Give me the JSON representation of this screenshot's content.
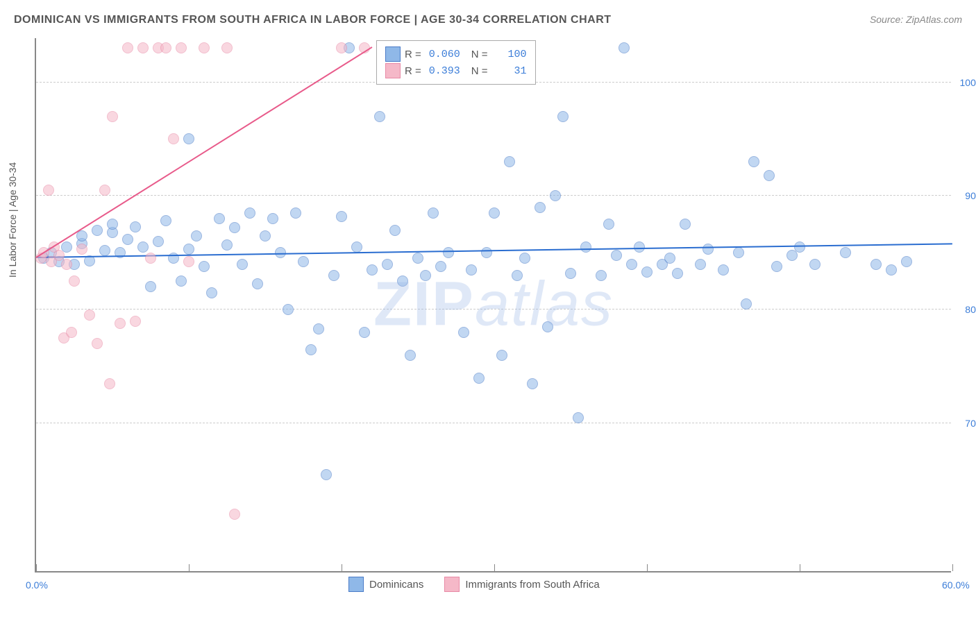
{
  "title": "DOMINICAN VS IMMIGRANTS FROM SOUTH AFRICA IN LABOR FORCE | AGE 30-34 CORRELATION CHART",
  "source": "Source: ZipAtlas.com",
  "ylabel": "In Labor Force | Age 30-34",
  "watermark": "ZIPatlas",
  "chart": {
    "type": "scatter",
    "xlim": [
      0,
      60
    ],
    "ylim": [
      57,
      104
    ],
    "yticks": [
      70,
      80,
      90,
      100
    ],
    "ytick_labels": [
      "70.0%",
      "80.0%",
      "90.0%",
      "100.0%"
    ],
    "xticks": [
      0,
      10,
      20,
      30,
      40,
      50,
      60
    ],
    "xtick_labels": [
      "0.0%",
      "",
      "",
      "",
      "",
      "",
      "60.0%"
    ],
    "grid_color": "#cccccc",
    "marker_size": 16,
    "series": [
      {
        "name": "Dominicans",
        "color": "#8fb8e8",
        "stroke": "#4a7bc8",
        "R": "0.060",
        "N": "100",
        "trend": {
          "x1": 0,
          "y1": 84.5,
          "x2": 60,
          "y2": 85.7,
          "color": "#2a6dd0",
          "width": 2
        },
        "points": [
          [
            0.5,
            84.5
          ],
          [
            1,
            85
          ],
          [
            1.5,
            84.2
          ],
          [
            2,
            85.5
          ],
          [
            2.5,
            84
          ],
          [
            3,
            85.8
          ],
          [
            3,
            86.5
          ],
          [
            3.5,
            84.3
          ],
          [
            4,
            87
          ],
          [
            4.5,
            85.2
          ],
          [
            5,
            86.8
          ],
          [
            5,
            87.5
          ],
          [
            5.5,
            85
          ],
          [
            6,
            86.2
          ],
          [
            6.5,
            87.3
          ],
          [
            7,
            85.5
          ],
          [
            7.5,
            82
          ],
          [
            8,
            86
          ],
          [
            8.5,
            87.8
          ],
          [
            9,
            84.5
          ],
          [
            9.5,
            82.5
          ],
          [
            10,
            85.3
          ],
          [
            10,
            95
          ],
          [
            10.5,
            86.5
          ],
          [
            11,
            83.8
          ],
          [
            11.5,
            81.5
          ],
          [
            12,
            88
          ],
          [
            12.5,
            85.7
          ],
          [
            13,
            87.2
          ],
          [
            13.5,
            84
          ],
          [
            14,
            88.5
          ],
          [
            14.5,
            82.3
          ],
          [
            15,
            86.5
          ],
          [
            15.5,
            88
          ],
          [
            16,
            85
          ],
          [
            16.5,
            80
          ],
          [
            17,
            88.5
          ],
          [
            17.5,
            84.2
          ],
          [
            18,
            76.5
          ],
          [
            18.5,
            78.3
          ],
          [
            19,
            65.5
          ],
          [
            19.5,
            83
          ],
          [
            20,
            88.2
          ],
          [
            20.5,
            103
          ],
          [
            21,
            85.5
          ],
          [
            21.5,
            78
          ],
          [
            22,
            83.5
          ],
          [
            22.5,
            97
          ],
          [
            23,
            84
          ],
          [
            23.5,
            87
          ],
          [
            24,
            82.5
          ],
          [
            24.5,
            76
          ],
          [
            25,
            84.5
          ],
          [
            25.5,
            83
          ],
          [
            26,
            88.5
          ],
          [
            26.5,
            83.8
          ],
          [
            27,
            85
          ],
          [
            28,
            78
          ],
          [
            28.5,
            83.5
          ],
          [
            29,
            74
          ],
          [
            29.5,
            85
          ],
          [
            30,
            88.5
          ],
          [
            30.5,
            76
          ],
          [
            31,
            93
          ],
          [
            31.5,
            83
          ],
          [
            32,
            84.5
          ],
          [
            32.5,
            73.5
          ],
          [
            33,
            89
          ],
          [
            33.5,
            78.5
          ],
          [
            34,
            90
          ],
          [
            34.5,
            97
          ],
          [
            35,
            83.2
          ],
          [
            35.5,
            70.5
          ],
          [
            36,
            85.5
          ],
          [
            37,
            83
          ],
          [
            37.5,
            87.5
          ],
          [
            38,
            84.8
          ],
          [
            38.5,
            103
          ],
          [
            39,
            84
          ],
          [
            39.5,
            85.5
          ],
          [
            40,
            83.3
          ],
          [
            41,
            84
          ],
          [
            41.5,
            84.5
          ],
          [
            42,
            83.2
          ],
          [
            42.5,
            87.5
          ],
          [
            43.5,
            84
          ],
          [
            44,
            85.3
          ],
          [
            45,
            83.5
          ],
          [
            46,
            85
          ],
          [
            46.5,
            80.5
          ],
          [
            47,
            93
          ],
          [
            48,
            91.8
          ],
          [
            48.5,
            83.8
          ],
          [
            49.5,
            84.8
          ],
          [
            50,
            85.5
          ],
          [
            51,
            84
          ],
          [
            53,
            85
          ],
          [
            55,
            84
          ],
          [
            56,
            83.5
          ],
          [
            57,
            84.2
          ]
        ]
      },
      {
        "name": "Immigrants from South Africa",
        "color": "#f5b8c8",
        "stroke": "#e889a5",
        "R": "0.393",
        "N": "31",
        "trend": {
          "x1": 0,
          "y1": 84.5,
          "x2": 22,
          "y2": 103,
          "color": "#e85a8a",
          "width": 2
        },
        "points": [
          [
            0.3,
            84.5
          ],
          [
            0.5,
            85
          ],
          [
            0.8,
            90.5
          ],
          [
            1,
            84.2
          ],
          [
            1.2,
            85.5
          ],
          [
            1.5,
            84.8
          ],
          [
            1.8,
            77.5
          ],
          [
            2,
            84
          ],
          [
            2.3,
            78
          ],
          [
            2.5,
            82.5
          ],
          [
            3,
            85.3
          ],
          [
            3.5,
            79.5
          ],
          [
            4,
            77
          ],
          [
            4.5,
            90.5
          ],
          [
            4.8,
            73.5
          ],
          [
            5,
            97
          ],
          [
            5.5,
            78.8
          ],
          [
            6,
            103
          ],
          [
            6.5,
            79
          ],
          [
            7,
            103
          ],
          [
            7.5,
            84.5
          ],
          [
            8,
            103
          ],
          [
            8.5,
            103
          ],
          [
            9,
            95
          ],
          [
            9.5,
            103
          ],
          [
            10,
            84.2
          ],
          [
            11,
            103
          ],
          [
            12.5,
            103
          ],
          [
            13,
            62
          ],
          [
            20,
            103
          ],
          [
            21.5,
            103
          ]
        ]
      }
    ]
  },
  "legend_top": {
    "r_label": "R =",
    "n_label": "N ="
  },
  "legend_bottom": {
    "items": [
      "Dominicans",
      "Immigrants from South Africa"
    ]
  }
}
